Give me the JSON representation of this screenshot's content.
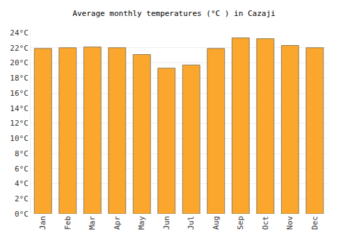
{
  "chart_data": {
    "type": "bar",
    "title": "Average monthly temperatures (°C ) in Cazaji",
    "categories": [
      "Jan",
      "Feb",
      "Mar",
      "Apr",
      "May",
      "Jun",
      "Jul",
      "Aug",
      "Sep",
      "Oct",
      "Nov",
      "Dec"
    ],
    "values": [
      21.9,
      22.0,
      22.1,
      22.0,
      21.1,
      19.3,
      19.7,
      21.9,
      23.3,
      23.2,
      22.3,
      22.0
    ],
    "color": "#fba72e",
    "ylim": [
      0,
      24
    ],
    "yticks": [
      {
        "value": 0,
        "label": "0°C"
      },
      {
        "value": 2,
        "label": "2°C"
      },
      {
        "value": 4,
        "label": "4°C"
      },
      {
        "value": 6,
        "label": "6°C"
      },
      {
        "value": 8,
        "label": "8°C"
      },
      {
        "value": 10,
        "label": "10°C"
      },
      {
        "value": 12,
        "label": "12°C"
      },
      {
        "value": 14,
        "label": "14°C"
      },
      {
        "value": 16,
        "label": "16°C"
      },
      {
        "value": 18,
        "label": "18°C"
      },
      {
        "value": 20,
        "label": "20°C"
      },
      {
        "value": 22,
        "label": "22°C"
      },
      {
        "value": 24,
        "label": "24°C"
      }
    ],
    "grid": true
  }
}
